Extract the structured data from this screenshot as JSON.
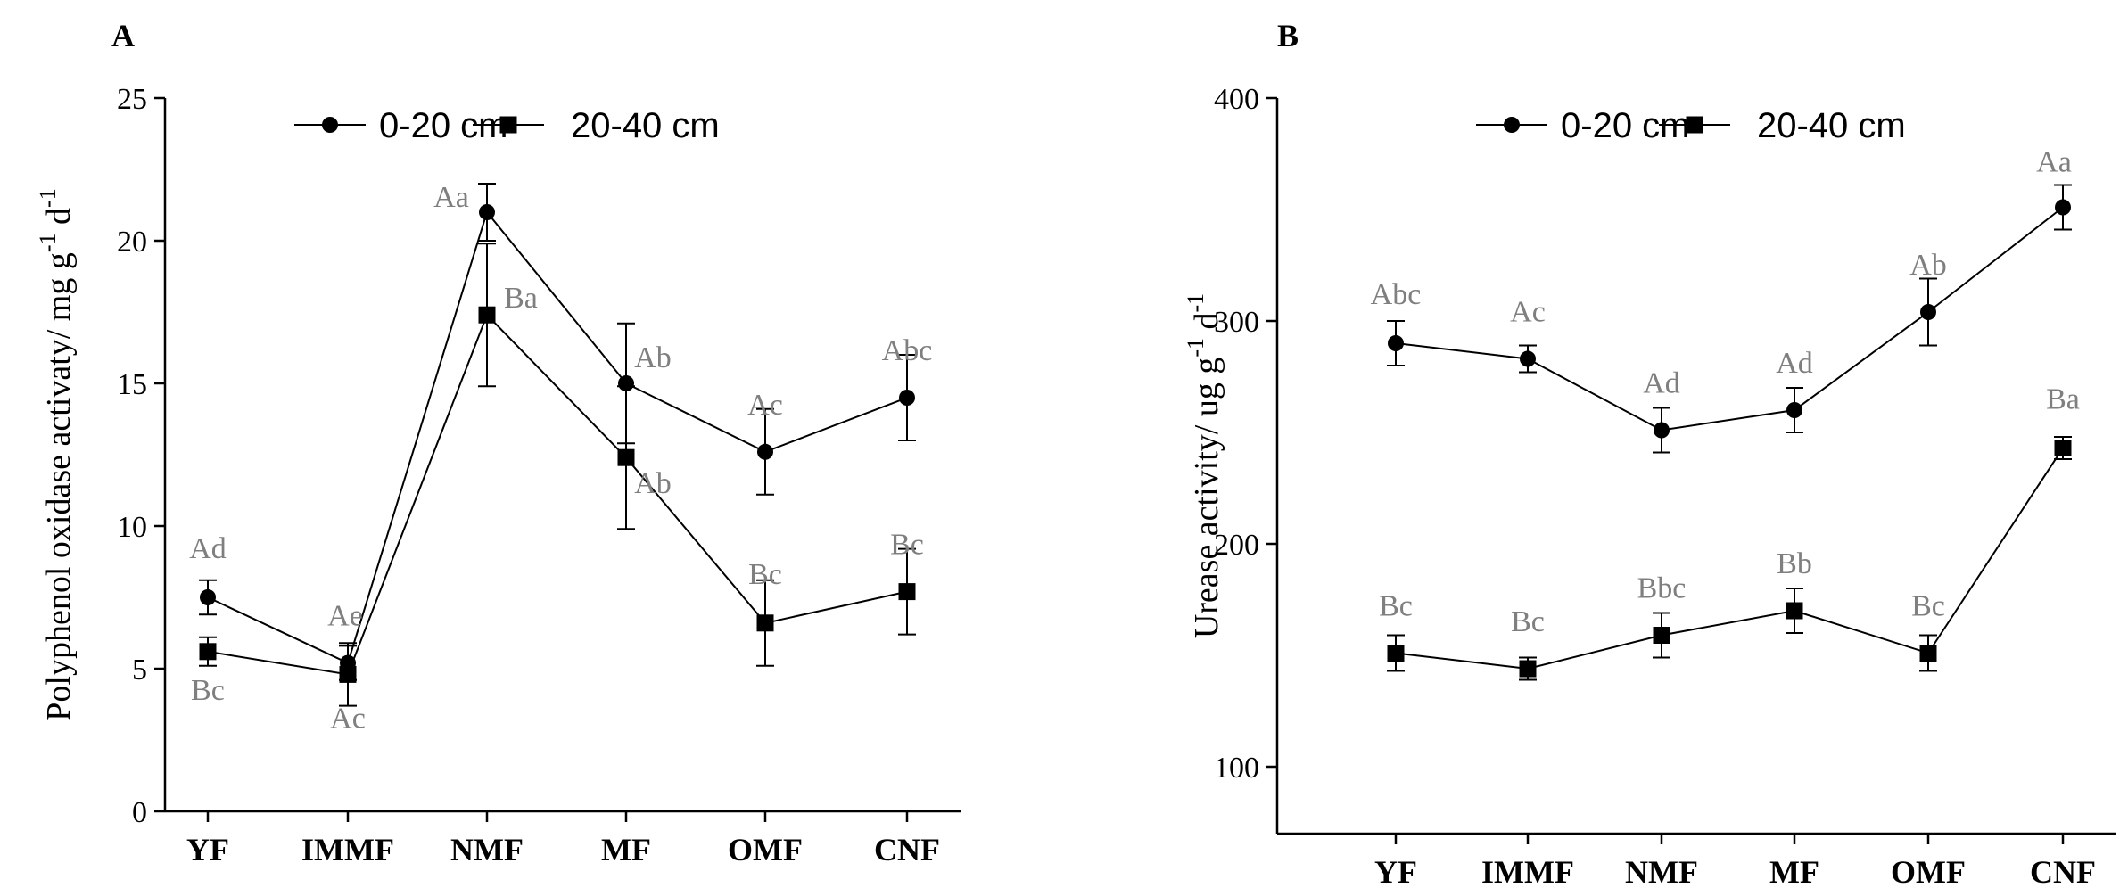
{
  "chart_data": [
    {
      "panel_label": "A",
      "type": "line",
      "categories": [
        "YF",
        "IMMF",
        "NMF",
        "MF",
        "OMF",
        "CNF"
      ],
      "ylabel": "Polyphenol oxidase activaty/ mg g",
      "ylabel_sup1": "-1",
      "ylabel_mid": " d",
      "ylabel_sup2": "-1",
      "ylim": [
        0,
        25
      ],
      "yticks": [
        0,
        5,
        10,
        15,
        20,
        25
      ],
      "legend_position": "top",
      "series": [
        {
          "name": "0-20 cm",
          "marker": "circle",
          "values": [
            7.5,
            5.2,
            21.0,
            15.0,
            12.6,
            14.5
          ],
          "errors": [
            0.6,
            0.6,
            1.0,
            2.1,
            1.5,
            1.5
          ],
          "labels": [
            "Ad",
            "Ae",
            "Aa",
            "Ab",
            "Ac",
            "Abc"
          ]
        },
        {
          "name": "20-40 cm",
          "marker": "square",
          "values": [
            5.6,
            4.8,
            17.4,
            12.4,
            6.6,
            7.7
          ],
          "errors": [
            0.5,
            1.1,
            2.5,
            2.5,
            1.5,
            1.5
          ],
          "labels": [
            "Bc",
            "Ac",
            "Ba",
            "Ab",
            "Bc",
            "Bc"
          ]
        }
      ]
    },
    {
      "panel_label": "B",
      "type": "line",
      "categories": [
        "YF",
        "IMMF",
        "NMF",
        "MF",
        "OMF",
        "CNF"
      ],
      "ylabel": "Urease activity/ ug g",
      "ylabel_sup1": "-1",
      "ylabel_mid": " d",
      "ylabel_sup2": "-1",
      "ylim": [
        70,
        400
      ],
      "yticks": [
        100,
        200,
        300,
        400
      ],
      "legend_position": "top",
      "series": [
        {
          "name": "0-20 cm",
          "marker": "circle",
          "values": [
            290,
            283,
            251,
            260,
            304,
            351
          ],
          "errors": [
            10,
            6,
            10,
            10,
            15,
            10
          ],
          "labels": [
            "Abc",
            "Ac",
            "Ad",
            "Ad",
            "Ab",
            "Aa"
          ]
        },
        {
          "name": "20-40 cm",
          "marker": "square",
          "values": [
            151,
            144,
            159,
            170,
            151,
            243
          ],
          "errors": [
            8,
            5,
            10,
            10,
            8,
            5
          ],
          "labels": [
            "Bc",
            "Bc",
            "Bbc",
            "Bb",
            "Bc",
            "Ba"
          ]
        }
      ]
    }
  ]
}
